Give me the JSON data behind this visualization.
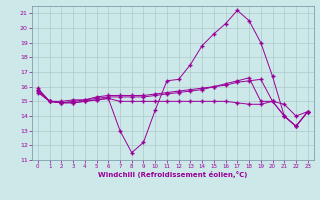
{
  "x_values": [
    0,
    1,
    2,
    3,
    4,
    5,
    6,
    7,
    8,
    9,
    10,
    11,
    12,
    13,
    14,
    15,
    16,
    17,
    18,
    19,
    20,
    21,
    22,
    23
  ],
  "line1": [
    15.9,
    15.0,
    14.9,
    14.9,
    15.0,
    15.1,
    15.2,
    13.0,
    11.5,
    12.2,
    14.4,
    16.4,
    16.5,
    17.5,
    18.8,
    19.6,
    20.3,
    21.2,
    20.5,
    19.0,
    16.7,
    14.0,
    13.3,
    14.3
  ],
  "line2": [
    15.6,
    15.0,
    14.9,
    14.9,
    15.0,
    15.1,
    15.2,
    15.0,
    15.0,
    15.0,
    15.0,
    15.0,
    15.0,
    15.0,
    15.0,
    15.0,
    15.0,
    14.9,
    14.8,
    14.8,
    15.0,
    14.8,
    14.0,
    14.3
  ],
  "line3": [
    15.7,
    15.0,
    14.9,
    15.0,
    15.1,
    15.3,
    15.4,
    15.4,
    15.4,
    15.4,
    15.5,
    15.6,
    15.7,
    15.8,
    15.9,
    16.0,
    16.1,
    16.3,
    16.4,
    16.5,
    15.0,
    14.0,
    13.3,
    14.3
  ],
  "line4": [
    15.8,
    15.0,
    15.0,
    15.1,
    15.1,
    15.2,
    15.3,
    15.3,
    15.3,
    15.3,
    15.4,
    15.5,
    15.6,
    15.7,
    15.8,
    16.0,
    16.2,
    16.4,
    16.6,
    15.0,
    15.0,
    14.0,
    13.3,
    14.3
  ],
  "color": "#990099",
  "bg_color": "#cce8e8",
  "grid_color": "#aacccc",
  "xlabel": "Windchill (Refroidissement éolien,°C)",
  "ylim": [
    11,
    21.5
  ],
  "xlim": [
    -0.5,
    23.5
  ],
  "yticks": [
    11,
    12,
    13,
    14,
    15,
    16,
    17,
    18,
    19,
    20,
    21
  ],
  "xticks": [
    0,
    1,
    2,
    3,
    4,
    5,
    6,
    7,
    8,
    9,
    10,
    11,
    12,
    13,
    14,
    15,
    16,
    17,
    18,
    19,
    20,
    21,
    22,
    23
  ]
}
